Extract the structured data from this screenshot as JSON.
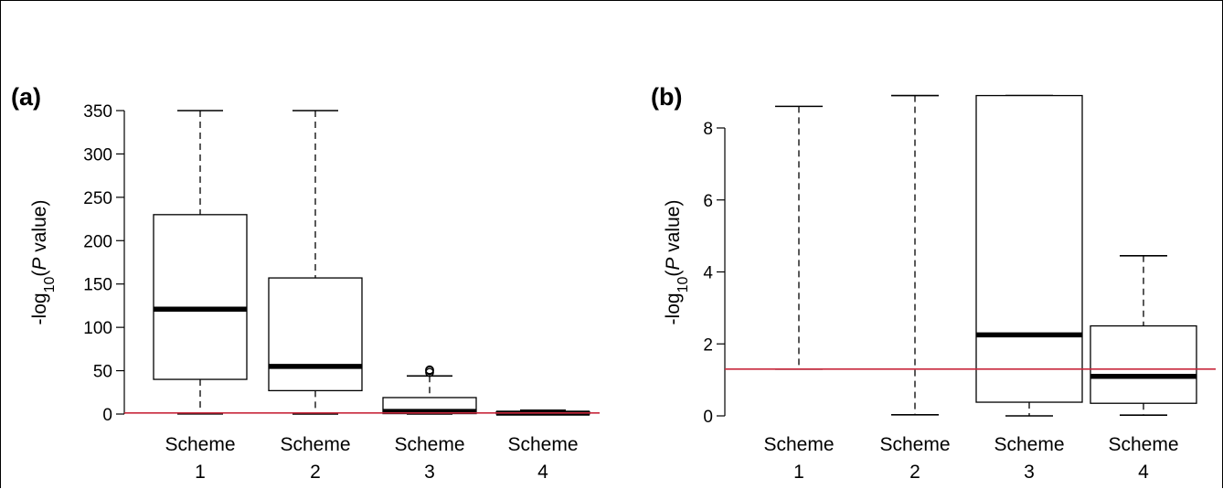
{
  "chart_data": [
    {
      "panel_label": "(a)",
      "type": "box",
      "ylabel_parts": [
        "-log",
        "10",
        "(",
        "P",
        " value)"
      ],
      "ylim": [
        0,
        350
      ],
      "yticks": [
        0,
        50,
        100,
        150,
        200,
        250,
        300,
        350
      ],
      "categories": [
        [
          "Scheme",
          "1"
        ],
        [
          "Scheme",
          "2"
        ],
        [
          "Scheme",
          "3"
        ],
        [
          "Scheme",
          "4"
        ]
      ],
      "reference_line": 1.3,
      "boxes": [
        {
          "whisker_low": 0.2,
          "q1": 40,
          "median": 121,
          "q3": 230,
          "whisker_high": 350,
          "outliers": []
        },
        {
          "whisker_low": 0,
          "q1": 27,
          "median": 55,
          "q3": 157,
          "whisker_high": 350,
          "outliers": []
        },
        {
          "whisker_low": 0,
          "q1": 0.5,
          "median": 3,
          "q3": 19,
          "whisker_high": 44,
          "outliers": [
            48,
            50,
            51
          ]
        },
        {
          "whisker_low": 0,
          "q1": 0.2,
          "median": 1.1,
          "q3": 2.5,
          "whisker_high": 4.4,
          "outliers": []
        }
      ]
    },
    {
      "panel_label": "(b)",
      "type": "box",
      "ylabel_parts": [
        "-log",
        "10",
        "(",
        "P",
        " value)"
      ],
      "ylim": [
        0,
        8
      ],
      "yticks": [
        0,
        2,
        4,
        6,
        8
      ],
      "categories": [
        [
          "Scheme",
          "1"
        ],
        [
          "Scheme",
          "2"
        ],
        [
          "Scheme",
          "3"
        ],
        [
          "Scheme",
          "4"
        ]
      ],
      "reference_line": 1.3,
      "boxes": [
        {
          "whisker_low": 1.3,
          "q1": null,
          "median": null,
          "q3": null,
          "whisker_high": 8.6,
          "outliers": []
        },
        {
          "whisker_low": 0.03,
          "q1": null,
          "median": null,
          "q3": null,
          "whisker_high": 8.9,
          "outliers": []
        },
        {
          "whisker_low": 0,
          "q1": 0.38,
          "median": 2.25,
          "q3": 8.9,
          "whisker_high": 8.9,
          "outliers": []
        },
        {
          "whisker_low": 0.02,
          "q1": 0.35,
          "median": 1.1,
          "q3": 2.5,
          "whisker_high": 4.45,
          "outliers": []
        }
      ]
    }
  ],
  "colors": {
    "axis": "#000000",
    "reference_line": "#c8283c",
    "median": "#000000"
  }
}
